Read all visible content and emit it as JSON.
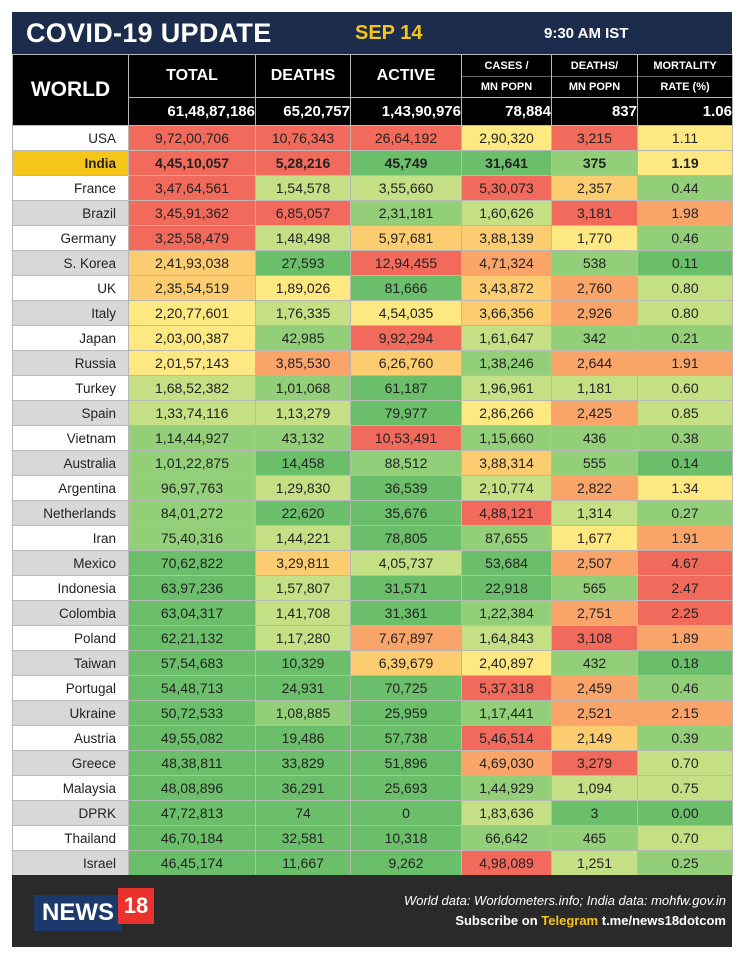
{
  "header": {
    "title": "COVID-19 UPDATE",
    "date": "SEP 14",
    "time": "9:30 AM IST"
  },
  "columns": {
    "world": "WORLD",
    "total": "TOTAL",
    "deaths": "DEATHS",
    "active": "ACTIVE",
    "cases_mn_l1": "CASES /",
    "cases_mn_l2": "MN POPN",
    "deaths_mn_l1": "DEATHS/",
    "deaths_mn_l2": "MN POPN",
    "mortality_l1": "MORTALITY",
    "mortality_l2": "RATE (%)"
  },
  "world_totals": [
    "61,48,87,186",
    "65,20,757",
    "1,43,90,976",
    "78,884",
    "837",
    "1.06"
  ],
  "rows": [
    {
      "country": "USA",
      "total": "9,72,00,706",
      "deaths": "10,76,343",
      "active": "26,64,192",
      "cases_mn": "2,90,320",
      "deaths_mn": "3,215",
      "mortality": "1.11"
    },
    {
      "country": "India",
      "total": "4,45,10,057",
      "deaths": "5,28,216",
      "active": "45,749",
      "cases_mn": "31,641",
      "deaths_mn": "375",
      "mortality": "1.19"
    },
    {
      "country": "France",
      "total": "3,47,64,561",
      "deaths": "1,54,578",
      "active": "3,55,660",
      "cases_mn": "5,30,073",
      "deaths_mn": "2,357",
      "mortality": "0.44"
    },
    {
      "country": "Brazil",
      "total": "3,45,91,362",
      "deaths": "6,85,057",
      "active": "2,31,181",
      "cases_mn": "1,60,626",
      "deaths_mn": "3,181",
      "mortality": "1.98"
    },
    {
      "country": "Germany",
      "total": "3,25,58,479",
      "deaths": "1,48,498",
      "active": "5,97,681",
      "cases_mn": "3,88,139",
      "deaths_mn": "1,770",
      "mortality": "0.46"
    },
    {
      "country": "S. Korea",
      "total": "2,41,93,038",
      "deaths": "27,593",
      "active": "12,94,455",
      "cases_mn": "4,71,324",
      "deaths_mn": "538",
      "mortality": "0.11"
    },
    {
      "country": "UK",
      "total": "2,35,54,519",
      "deaths": "1,89,026",
      "active": "81,666",
      "cases_mn": "3,43,872",
      "deaths_mn": "2,760",
      "mortality": "0.80"
    },
    {
      "country": "Italy",
      "total": "2,20,77,601",
      "deaths": "1,76,335",
      "active": "4,54,035",
      "cases_mn": "3,66,356",
      "deaths_mn": "2,926",
      "mortality": "0.80"
    },
    {
      "country": "Japan",
      "total": "2,03,00,387",
      "deaths": "42,985",
      "active": "9,92,294",
      "cases_mn": "1,61,647",
      "deaths_mn": "342",
      "mortality": "0.21"
    },
    {
      "country": "Russia",
      "total": "2,01,57,143",
      "deaths": "3,85,530",
      "active": "6,26,760",
      "cases_mn": "1,38,246",
      "deaths_mn": "2,644",
      "mortality": "1.91"
    },
    {
      "country": "Turkey",
      "total": "1,68,52,382",
      "deaths": "1,01,068",
      "active": "61,187",
      "cases_mn": "1,96,961",
      "deaths_mn": "1,181",
      "mortality": "0.60"
    },
    {
      "country": "Spain",
      "total": "1,33,74,116",
      "deaths": "1,13,279",
      "active": "79,977",
      "cases_mn": "2,86,266",
      "deaths_mn": "2,425",
      "mortality": "0.85"
    },
    {
      "country": "Vietnam",
      "total": "1,14,44,927",
      "deaths": "43,132",
      "active": "10,53,491",
      "cases_mn": "1,15,660",
      "deaths_mn": "436",
      "mortality": "0.38"
    },
    {
      "country": "Australia",
      "total": "1,01,22,875",
      "deaths": "14,458",
      "active": "88,512",
      "cases_mn": "3,88,314",
      "deaths_mn": "555",
      "mortality": "0.14"
    },
    {
      "country": "Argentina",
      "total": "96,97,763",
      "deaths": "1,29,830",
      "active": "36,539",
      "cases_mn": "2,10,774",
      "deaths_mn": "2,822",
      "mortality": "1.34"
    },
    {
      "country": "Netherlands",
      "total": "84,01,272",
      "deaths": "22,620",
      "active": "35,676",
      "cases_mn": "4,88,121",
      "deaths_mn": "1,314",
      "mortality": "0.27"
    },
    {
      "country": "Iran",
      "total": "75,40,316",
      "deaths": "1,44,221",
      "active": "78,805",
      "cases_mn": "87,655",
      "deaths_mn": "1,677",
      "mortality": "1.91"
    },
    {
      "country": "Mexico",
      "total": "70,62,822",
      "deaths": "3,29,811",
      "active": "4,05,737",
      "cases_mn": "53,684",
      "deaths_mn": "2,507",
      "mortality": "4.67"
    },
    {
      "country": "Indonesia",
      "total": "63,97,236",
      "deaths": "1,57,807",
      "active": "31,571",
      "cases_mn": "22,918",
      "deaths_mn": "565",
      "mortality": "2.47"
    },
    {
      "country": "Colombia",
      "total": "63,04,317",
      "deaths": "1,41,708",
      "active": "31,361",
      "cases_mn": "1,22,384",
      "deaths_mn": "2,751",
      "mortality": "2.25"
    },
    {
      "country": "Poland",
      "total": "62,21,132",
      "deaths": "1,17,280",
      "active": "7,67,897",
      "cases_mn": "1,64,843",
      "deaths_mn": "3,108",
      "mortality": "1.89"
    },
    {
      "country": "Taiwan",
      "total": "57,54,683",
      "deaths": "10,329",
      "active": "6,39,679",
      "cases_mn": "2,40,897",
      "deaths_mn": "432",
      "mortality": "0.18"
    },
    {
      "country": "Portugal",
      "total": "54,48,713",
      "deaths": "24,931",
      "active": "70,725",
      "cases_mn": "5,37,318",
      "deaths_mn": "2,459",
      "mortality": "0.46"
    },
    {
      "country": "Ukraine",
      "total": "50,72,533",
      "deaths": "1,08,885",
      "active": "25,959",
      "cases_mn": "1,17,441",
      "deaths_mn": "2,521",
      "mortality": "2.15"
    },
    {
      "country": "Austria",
      "total": "49,55,082",
      "deaths": "19,486",
      "active": "57,738",
      "cases_mn": "5,46,514",
      "deaths_mn": "2,149",
      "mortality": "0.39"
    },
    {
      "country": "Greece",
      "total": "48,38,811",
      "deaths": "33,829",
      "active": "51,896",
      "cases_mn": "4,69,030",
      "deaths_mn": "3,279",
      "mortality": "0.70"
    },
    {
      "country": "Malaysia",
      "total": "48,08,896",
      "deaths": "36,291",
      "active": "25,693",
      "cases_mn": "1,44,929",
      "deaths_mn": "1,094",
      "mortality": "0.75"
    },
    {
      "country": "DPRK",
      "total": "47,72,813",
      "deaths": "74",
      "active": "0",
      "cases_mn": "1,83,636",
      "deaths_mn": "3",
      "mortality": "0.00"
    },
    {
      "country": "Thailand",
      "total": "46,70,184",
      "deaths": "32,581",
      "active": "10,318",
      "cases_mn": "66,642",
      "deaths_mn": "465",
      "mortality": "0.70"
    },
    {
      "country": "Israel",
      "total": "46,45,174",
      "deaths": "11,667",
      "active": "9,262",
      "cases_mn": "4,98,089",
      "deaths_mn": "1,251",
      "mortality": "0.25"
    }
  ],
  "scale_colors": {
    "red": "#f26a5b",
    "orange": "#f9a56a",
    "amber": "#fbcc70",
    "yellow": "#fde882",
    "lightgreen": "#c5df84",
    "green": "#93cf79",
    "darkgreen": "#6cbf6a"
  },
  "footer": {
    "logo_text": "NEWS",
    "logo_num": "18",
    "source": "World data: Worldometers.info; India data: mohfw.gov.in",
    "subscribe_prefix": "Subscribe on ",
    "subscribe_platform": "Telegram",
    "subscribe_link": " t.me/news18dotcom"
  }
}
